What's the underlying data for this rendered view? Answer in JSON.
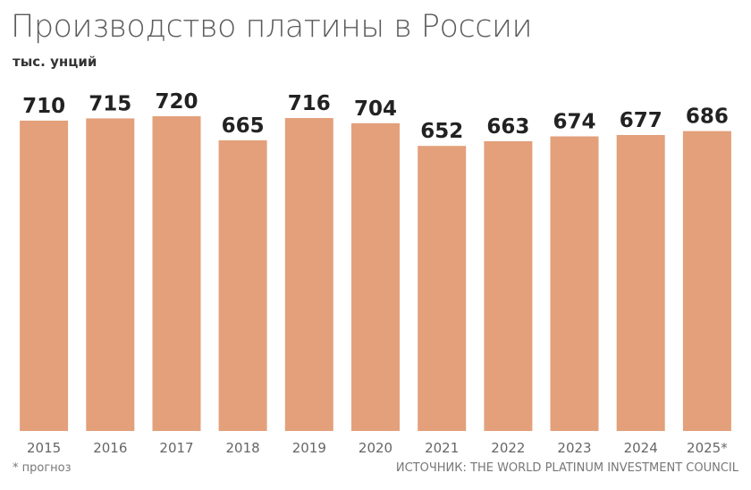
{
  "title": "Производство платины в России",
  "unit": "тыс. унций",
  "footnote": "* прогноз",
  "source": "ИСТОЧНИК: THE WORLD PLATINUM INVESTMENT COUNCIL",
  "colors": {
    "bar": "#e3a07a",
    "value_label": "#222222",
    "tick_label": "#666666"
  },
  "chart_data": {
    "type": "bar",
    "categories": [
      "2015",
      "2016",
      "2017",
      "2018",
      "2019",
      "2020",
      "2021",
      "2022",
      "2023",
      "2024",
      "2025*"
    ],
    "values": [
      710,
      715,
      720,
      665,
      716,
      704,
      652,
      663,
      674,
      677,
      686
    ],
    "ylim": [
      0,
      720
    ],
    "grid": false,
    "legend": "none"
  }
}
